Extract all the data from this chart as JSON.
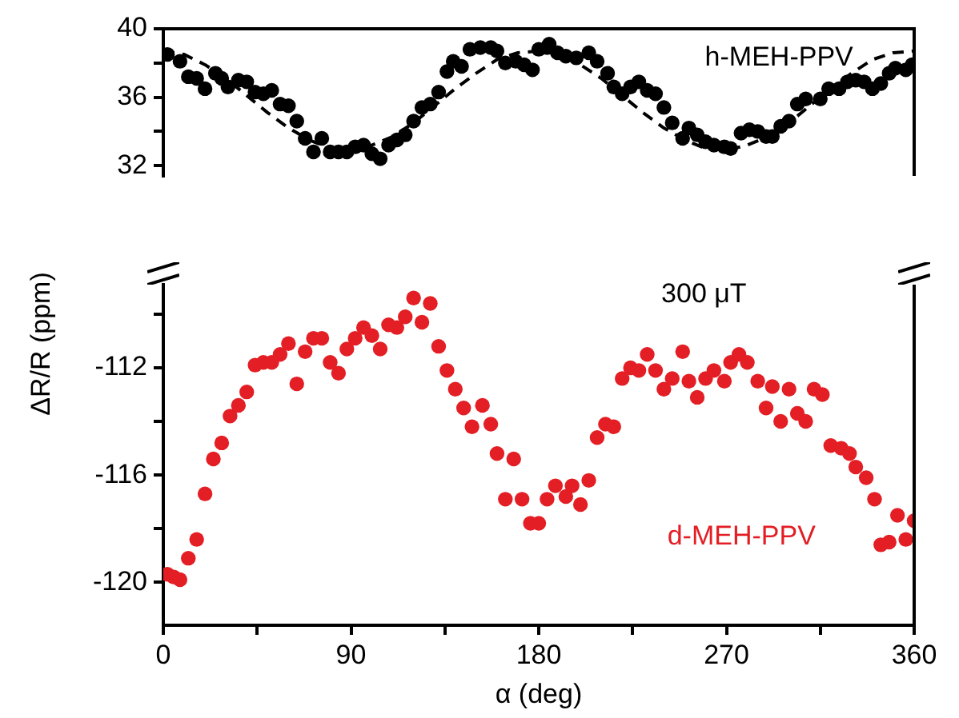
{
  "chart_data": [
    {
      "type": "scatter",
      "ylabel": "ΔR/R (ppm)",
      "xlim": [
        0,
        360
      ],
      "ylim": [
        31.4,
        40
      ],
      "yticks": [
        32,
        {
          "value": 34,
          "label": null
        },
        36,
        {
          "value": 38,
          "label": null
        },
        40
      ],
      "tick_labels": "y",
      "marker": "circle",
      "series": [
        {
          "name": "h-MEH-PPV",
          "color": "#000000",
          "x": [
            2,
            8,
            12,
            16,
            20,
            25,
            28,
            31,
            36,
            40,
            44,
            48,
            52,
            56,
            60,
            64,
            68,
            72,
            76,
            80,
            84,
            88,
            92,
            96,
            100,
            104,
            108,
            112,
            116,
            120,
            124,
            128,
            132,
            136,
            139,
            143,
            147,
            152,
            157,
            160,
            164,
            169,
            173,
            177,
            180,
            184,
            185,
            189,
            193,
            198,
            204,
            208,
            213,
            216,
            220,
            224,
            228,
            232,
            236,
            240,
            244,
            249,
            252,
            256,
            260,
            264,
            269,
            272,
            277,
            281,
            285,
            289,
            292,
            296,
            300,
            304,
            308,
            315,
            319,
            324,
            328,
            332,
            336,
            340,
            344,
            348,
            351,
            356,
            359
          ],
          "values": [
            38.5,
            38.1,
            37.2,
            37.1,
            36.5,
            37.4,
            37.1,
            36.6,
            37.0,
            36.9,
            36.3,
            36.2,
            36.4,
            35.6,
            35.5,
            34.6,
            33.6,
            32.8,
            33.6,
            32.8,
            32.8,
            32.8,
            33.1,
            33.2,
            32.7,
            32.4,
            33.2,
            33.5,
            33.8,
            34.6,
            35.4,
            35.6,
            36.3,
            37.5,
            38.1,
            37.8,
            38.8,
            38.9,
            38.9,
            38.7,
            38.0,
            38.1,
            37.9,
            37.6,
            38.8,
            38.9,
            39.1,
            38.6,
            38.4,
            38.3,
            38.6,
            38.1,
            37.4,
            36.6,
            36.2,
            36.6,
            36.9,
            36.4,
            36.2,
            35.4,
            34.5,
            33.6,
            34.2,
            33.8,
            33.4,
            33.2,
            33.1,
            33.0,
            33.9,
            34.1,
            34.0,
            33.7,
            33.7,
            34.3,
            34.6,
            35.6,
            35.9,
            35.9,
            36.5,
            36.5,
            36.9,
            37.0,
            36.9,
            36.5,
            36.8,
            37.4,
            37.7,
            37.6,
            37.9
          ]
        },
        {
          "type": "line",
          "color": "#000000",
          "line_style": "dashed",
          "marker": "none",
          "x": [
            0,
            10,
            20,
            30,
            40,
            50,
            60,
            70,
            80,
            90,
            100,
            110,
            120,
            130,
            140,
            150,
            160,
            170,
            180,
            190,
            200,
            210,
            220,
            230,
            240,
            250,
            260,
            270,
            280,
            290,
            300,
            310,
            320,
            330,
            340,
            350,
            360
          ],
          "values": [
            38.7,
            38.5,
            37.9,
            37.1,
            36.1,
            35.1,
            34.2,
            33.5,
            33.0,
            32.9,
            33.2,
            33.7,
            34.5,
            35.5,
            36.5,
            37.4,
            38.2,
            38.6,
            38.7,
            38.5,
            37.9,
            37.1,
            36.1,
            35.1,
            34.2,
            33.5,
            33.0,
            32.9,
            33.2,
            33.7,
            34.5,
            35.5,
            36.5,
            37.4,
            38.2,
            38.6,
            38.7
          ]
        }
      ]
    },
    {
      "type": "scatter",
      "xlabel": "α (deg)",
      "xlim": [
        0,
        360
      ],
      "xticks": [
        0,
        {
          "value": 45,
          "label": null
        },
        90,
        {
          "value": 135,
          "label": null
        },
        180,
        {
          "value": 225,
          "label": null
        },
        270,
        {
          "value": 315,
          "label": null
        },
        360
      ],
      "ylim": [
        -121.6,
        -108.9
      ],
      "yticks": [
        -120,
        {
          "value": -118,
          "label": null
        },
        -116,
        {
          "value": -114,
          "label": null
        },
        -112,
        {
          "value": -110,
          "label": null
        }
      ],
      "marker": "circle",
      "annotations": [
        "300 μT"
      ],
      "series": [
        {
          "name": "d-MEH-PPV",
          "color": "#e31e24",
          "x": [
            2,
            5,
            8,
            12,
            16,
            20,
            24,
            28,
            32,
            36,
            40,
            44,
            48,
            52,
            56,
            60,
            64,
            68,
            72,
            76,
            80,
            84,
            88,
            92,
            96,
            100,
            104,
            108,
            112,
            116,
            120,
            124,
            128,
            132,
            136,
            140,
            144,
            148,
            153,
            157,
            160,
            164,
            168,
            172,
            176,
            180,
            184,
            188,
            193,
            196,
            200,
            204,
            208,
            212,
            216,
            220,
            224,
            228,
            232,
            236,
            240,
            244,
            249,
            252,
            256,
            260,
            264,
            269,
            272,
            276,
            280,
            285,
            289,
            292,
            296,
            300,
            304,
            308,
            312,
            316,
            320,
            325,
            329,
            332,
            337,
            341,
            344,
            348,
            352,
            356,
            360
          ],
          "values": [
            -119.7,
            -119.8,
            -119.9,
            -119.1,
            -118.4,
            -116.7,
            -115.4,
            -114.8,
            -113.8,
            -113.4,
            -112.9,
            -111.9,
            -111.8,
            -111.8,
            -111.5,
            -111.1,
            -112.6,
            -111.4,
            -110.9,
            -110.9,
            -111.8,
            -112.2,
            -111.3,
            -110.9,
            -110.5,
            -110.8,
            -111.3,
            -110.4,
            -110.5,
            -110.1,
            -109.4,
            -110.3,
            -109.6,
            -111.2,
            -112.1,
            -112.8,
            -113.5,
            -114.2,
            -113.4,
            -114.1,
            -115.2,
            -116.9,
            -115.4,
            -116.9,
            -117.8,
            -117.8,
            -116.9,
            -116.4,
            -116.8,
            -116.4,
            -117.1,
            -116.2,
            -114.6,
            -114.1,
            -114.2,
            -112.4,
            -112.0,
            -112.1,
            -111.5,
            -112.1,
            -112.8,
            -112.4,
            -111.4,
            -112.5,
            -113.1,
            -112.4,
            -112.1,
            -112.5,
            -111.8,
            -111.5,
            -111.8,
            -112.5,
            -113.5,
            -112.7,
            -114.0,
            -112.8,
            -113.7,
            -114.0,
            -112.8,
            -113.0,
            -114.9,
            -115.0,
            -115.2,
            -115.7,
            -116.1,
            -116.9,
            -118.6,
            -118.5,
            -117.5,
            -118.4,
            -117.7
          ]
        }
      ]
    }
  ]
}
